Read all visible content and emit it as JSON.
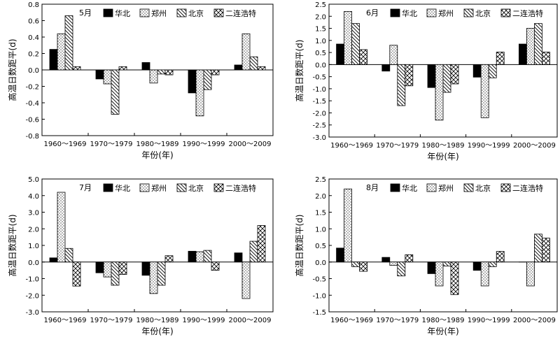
{
  "legend": [
    "华北",
    "郑州",
    "北京",
    "二连浩特"
  ],
  "colors": {
    "ink": "#000000",
    "background": "#ffffff"
  },
  "chart_data": [
    {
      "type": "bar",
      "title": "5月",
      "xlabel": "年份(年)",
      "ylabel": "高温日数距平(d)",
      "categories": [
        "1960～1969",
        "1970～1979",
        "1980～1989",
        "1990～1999",
        "2000～2009"
      ],
      "ylim": [
        -0.8,
        0.8
      ],
      "yticks": [
        -0.8,
        -0.6,
        -0.4,
        -0.2,
        0.0,
        0.2,
        0.4,
        0.6,
        0.8
      ],
      "ytick_labels": [
        "-0.8",
        "-0.6",
        "-0.4",
        "-0.2",
        "0.0",
        "0.2",
        "0.4",
        "0.6",
        "0.8"
      ],
      "grid": false,
      "legend_position": "top",
      "series": [
        {
          "name": "华北",
          "values": [
            0.25,
            -0.11,
            0.09,
            -0.28,
            0.06
          ]
        },
        {
          "name": "郑州",
          "values": [
            0.44,
            -0.17,
            -0.16,
            -0.56,
            0.44
          ]
        },
        {
          "name": "北京",
          "values": [
            0.66,
            -0.54,
            -0.05,
            -0.24,
            0.16
          ]
        },
        {
          "name": "二连浩特",
          "values": [
            0.04,
            0.04,
            -0.06,
            -0.06,
            0.04
          ]
        }
      ]
    },
    {
      "type": "bar",
      "title": "6月",
      "xlabel": "年份(年)",
      "ylabel": "高温日数距平(d)",
      "categories": [
        "1960～1969",
        "1970～1979",
        "1980～1989",
        "1990～1999",
        "2000～2009"
      ],
      "ylim": [
        -3.0,
        2.5
      ],
      "yticks": [
        -3.0,
        -2.5,
        -2.0,
        -1.5,
        -1.0,
        -0.5,
        0.0,
        0.5,
        1.0,
        1.5,
        2.0,
        2.5
      ],
      "ytick_labels": [
        "-3.0",
        "-2.5",
        "-2.0",
        "-1.5",
        "-1.0",
        "-0.5",
        "0.0",
        "0.5",
        "1.0",
        "1.5",
        "2.0",
        "2.5"
      ],
      "grid": false,
      "legend_position": "top",
      "series": [
        {
          "name": "华北",
          "values": [
            0.85,
            -0.27,
            -0.95,
            -0.52,
            0.85
          ]
        },
        {
          "name": "郑州",
          "values": [
            2.2,
            0.8,
            -2.3,
            -2.2,
            1.5
          ]
        },
        {
          "name": "北京",
          "values": [
            1.7,
            -1.7,
            -1.15,
            -0.55,
            1.7
          ]
        },
        {
          "name": "二连浩特",
          "values": [
            0.62,
            -0.88,
            -0.8,
            0.52,
            0.52
          ]
        }
      ]
    },
    {
      "type": "bar",
      "title": "7月",
      "xlabel": "年份(年)",
      "ylabel": "高温日数距平(d)",
      "categories": [
        "1960～1969",
        "1970～1979",
        "1980～1989",
        "1990～1999",
        "2000～2009"
      ],
      "ylim": [
        -3.0,
        5.0
      ],
      "yticks": [
        -3.0,
        -2.0,
        -1.0,
        0.0,
        1.0,
        2.0,
        3.0,
        4.0,
        5.0
      ],
      "ytick_labels": [
        "-3.0",
        "-2.0",
        "-1.0",
        "0.0",
        "1.0",
        "2.0",
        "3.0",
        "4.0",
        "5.0"
      ],
      "grid": false,
      "legend_position": "top",
      "series": [
        {
          "name": "华北",
          "values": [
            0.25,
            -0.65,
            -0.8,
            0.65,
            0.55
          ]
        },
        {
          "name": "郑州",
          "values": [
            4.2,
            -0.9,
            -1.9,
            0.62,
            -2.2
          ]
        },
        {
          "name": "北京",
          "values": [
            0.82,
            -1.4,
            -1.4,
            0.7,
            1.25
          ]
        },
        {
          "name": "二连浩特",
          "values": [
            -1.45,
            -0.75,
            0.38,
            -0.5,
            2.2
          ]
        }
      ]
    },
    {
      "type": "bar",
      "title": "8月",
      "xlabel": "年份(年)",
      "ylabel": "高温日数距平(d)",
      "categories": [
        "1960～1969",
        "1970～1979",
        "1980～1989",
        "1990～1999",
        "2000～2009"
      ],
      "ylim": [
        -1.5,
        2.5
      ],
      "yticks": [
        -1.5,
        -1.0,
        -0.5,
        0.0,
        0.5,
        1.0,
        1.5,
        2.0,
        2.5
      ],
      "ytick_labels": [
        "-1.5",
        "-1.0",
        "-0.5",
        "0.0",
        "0.5",
        "1.0",
        "1.5",
        "2.0",
        "2.5"
      ],
      "grid": false,
      "legend_position": "top",
      "series": [
        {
          "name": "华北",
          "values": [
            0.42,
            0.14,
            -0.35,
            -0.25,
            0.0
          ]
        },
        {
          "name": "郑州",
          "values": [
            2.2,
            -0.1,
            -0.72,
            -0.72,
            -0.72
          ]
        },
        {
          "name": "北京",
          "values": [
            -0.14,
            -0.42,
            -0.12,
            -0.14,
            0.84
          ]
        },
        {
          "name": "二连浩特",
          "values": [
            -0.28,
            0.22,
            -0.98,
            0.32,
            0.72
          ]
        }
      ]
    }
  ]
}
